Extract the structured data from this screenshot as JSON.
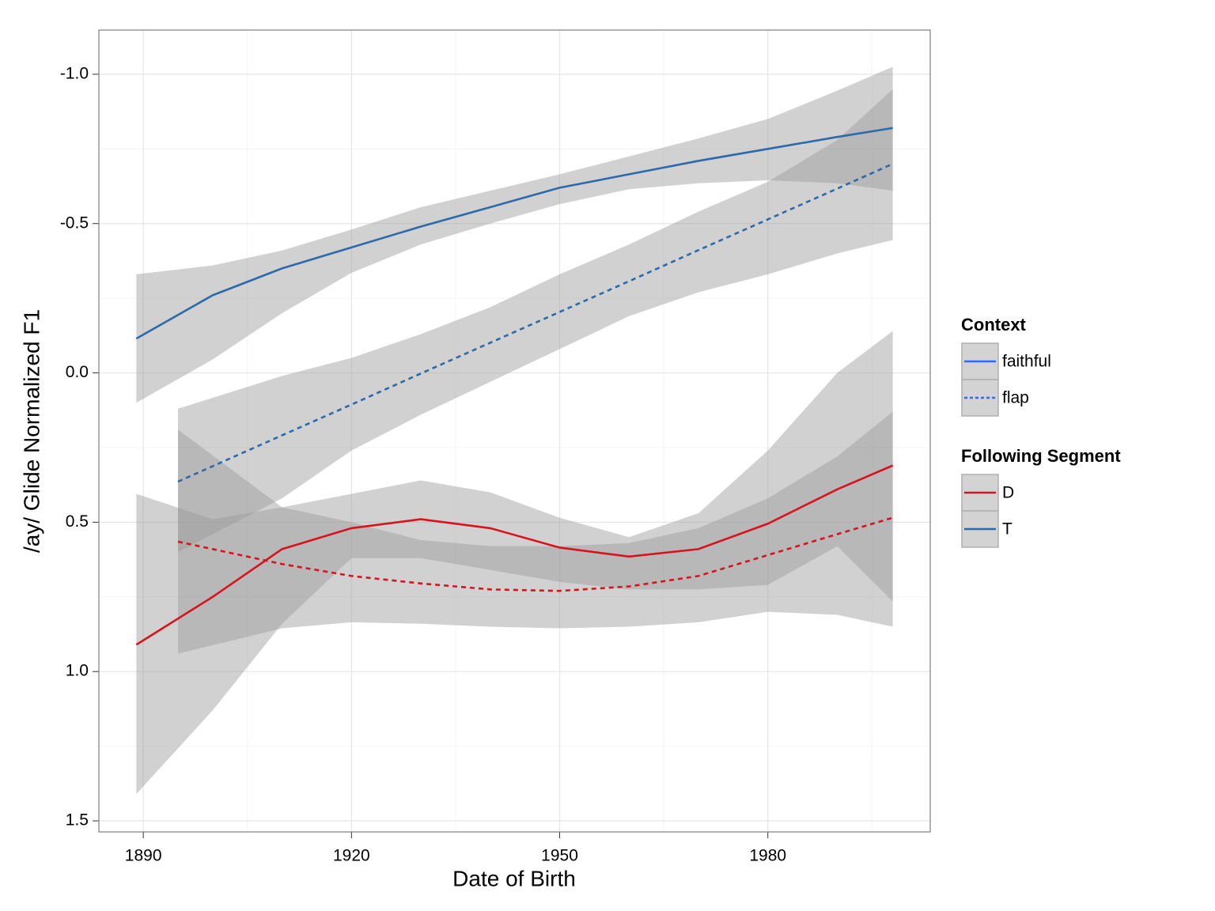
{
  "chart_data": {
    "type": "line",
    "x_label": "Date of Birth",
    "y_label": "/ay/ Glide Normalized F1",
    "xlim": [
      1883.6,
      2003.4
    ],
    "ylim": [
      -1.148,
      1.537
    ],
    "y_reversed": true,
    "grid": true,
    "xticks": [
      1890,
      1920,
      1950,
      1980
    ],
    "minor_xticks": [
      1905,
      1935,
      1965,
      1995
    ],
    "yticks": [
      {
        "value": -1.0,
        "label": "-1.0"
      },
      {
        "value": -0.5,
        "label": "-0.5"
      },
      {
        "value": 0,
        "label": "0.0"
      },
      {
        "value": 0.5,
        "label": "0.5"
      },
      {
        "value": 1.0,
        "label": "1.0"
      },
      {
        "value": 1.5,
        "label": "1.5"
      }
    ],
    "minor_yticks": [
      -0.75,
      -0.25,
      0.25,
      0.75,
      1.25
    ],
    "band_color": "#999999",
    "series": [
      {
        "color": "#2c6aab",
        "dashed": false,
        "x": [
          1889,
          1900,
          1910,
          1920,
          1930,
          1940,
          1950,
          1960,
          1970,
          1980,
          1990,
          1998
        ],
        "values": [
          -0.115,
          -0.26,
          -0.35,
          -0.42,
          -0.49,
          -0.555,
          -0.62,
          -0.665,
          -0.71,
          -0.75,
          -0.79,
          -0.82
        ],
        "lower": [
          -0.33,
          -0.36,
          -0.41,
          -0.48,
          -0.555,
          -0.61,
          -0.665,
          -0.725,
          -0.785,
          -0.85,
          -0.945,
          -1.025
        ],
        "upper": [
          0.1,
          -0.045,
          -0.2,
          -0.335,
          -0.43,
          -0.5,
          -0.565,
          -0.615,
          -0.635,
          -0.645,
          -0.635,
          -0.61
        ]
      },
      {
        "color": "#2c6aab",
        "dashed": true,
        "x": [
          1895,
          1910,
          1920,
          1930,
          1940,
          1950,
          1960,
          1970,
          1980,
          1990,
          1998
        ],
        "values": [
          0.364,
          0.209,
          0.106,
          0.002,
          -0.101,
          -0.204,
          -0.307,
          -0.411,
          -0.514,
          -0.617,
          -0.7
        ],
        "lower": [
          0.12,
          0.01,
          -0.05,
          -0.13,
          -0.22,
          -0.33,
          -0.43,
          -0.54,
          -0.64,
          -0.78,
          -0.95
        ],
        "upper": [
          0.6,
          0.42,
          0.26,
          0.14,
          0.03,
          -0.08,
          -0.19,
          -0.27,
          -0.33,
          -0.4,
          -0.445
        ]
      },
      {
        "color": "#d7141e",
        "dashed": false,
        "x": [
          1889,
          1900,
          1910,
          1920,
          1930,
          1940,
          1950,
          1960,
          1970,
          1980,
          1990,
          1998
        ],
        "values": [
          0.91,
          0.75,
          0.59,
          0.52,
          0.49,
          0.52,
          0.585,
          0.615,
          0.59,
          0.505,
          0.39,
          0.31
        ],
        "lower": [
          0.405,
          0.49,
          0.45,
          0.405,
          0.36,
          0.4,
          0.485,
          0.55,
          0.47,
          0.26,
          0.0,
          -0.14
        ],
        "upper": [
          1.41,
          1.13,
          0.84,
          0.62,
          0.62,
          0.66,
          0.7,
          0.725,
          0.725,
          0.71,
          0.58,
          0.765
        ]
      },
      {
        "color": "#d7141e",
        "dashed": true,
        "x": [
          1895,
          1910,
          1920,
          1930,
          1940,
          1950,
          1960,
          1970,
          1980,
          1990,
          1998
        ],
        "values": [
          0.565,
          0.64,
          0.68,
          0.705,
          0.725,
          0.73,
          0.715,
          0.68,
          0.61,
          0.54,
          0.485
        ],
        "lower": [
          0.19,
          0.45,
          0.5,
          0.56,
          0.58,
          0.58,
          0.57,
          0.52,
          0.42,
          0.28,
          0.13
        ],
        "upper": [
          0.94,
          0.855,
          0.835,
          0.84,
          0.85,
          0.855,
          0.85,
          0.835,
          0.8,
          0.81,
          0.85
        ]
      }
    ],
    "legends": [
      {
        "title": "Context",
        "entries": [
          {
            "label": "faithful",
            "color": "#3366ff",
            "dashed": false
          },
          {
            "label": "flap",
            "color": "#3366ff",
            "dashed": true
          }
        ]
      },
      {
        "title": "Following Segment",
        "entries": [
          {
            "label": "D",
            "color": "#d7141e",
            "dashed": false
          },
          {
            "label": "T",
            "color": "#2c6aab",
            "dashed": false
          }
        ]
      }
    ]
  }
}
